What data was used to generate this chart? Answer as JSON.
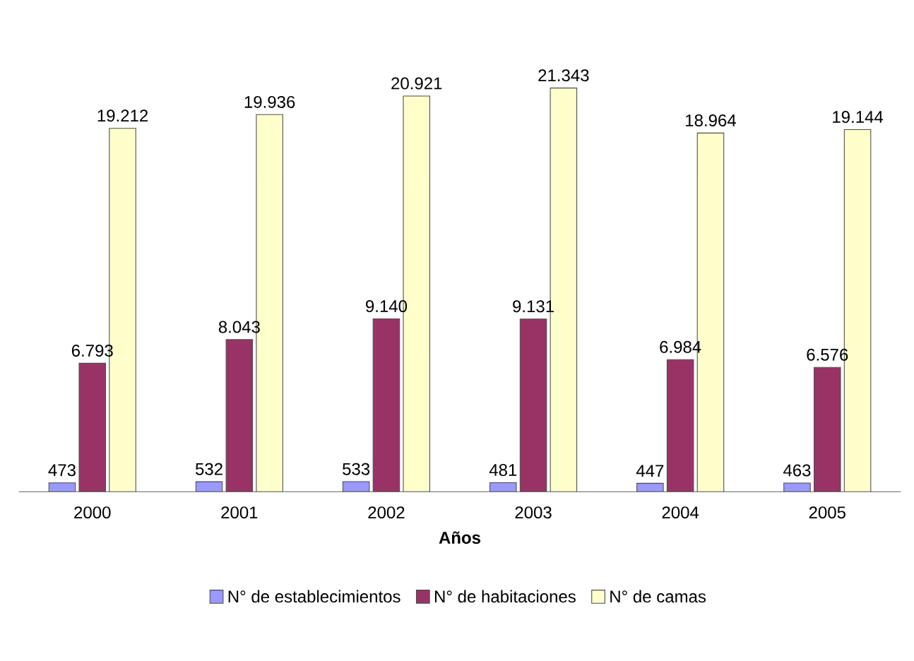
{
  "chart_data": {
    "type": "bar",
    "xlabel": "Años",
    "categories": [
      "2000",
      "2001",
      "2002",
      "2003",
      "2004",
      "2005"
    ],
    "legend": "bottom",
    "series": [
      {
        "name": "N° de establecimientos",
        "color": "#9999ff",
        "values": [
          473,
          532,
          533,
          481,
          447,
          463
        ],
        "value_labels": [
          "473",
          "532",
          "533",
          "481",
          "447",
          "463"
        ]
      },
      {
        "name": "N° de habitaciones",
        "color": "#993366",
        "values": [
          6793,
          8043,
          9140,
          9131,
          6984,
          6576
        ],
        "value_labels": [
          "6.793",
          "8.043",
          "9.140",
          "9.131",
          "6.984",
          "6.576"
        ]
      },
      {
        "name": "N° de camas",
        "color": "#ffffcc",
        "values": [
          19212,
          19936,
          20921,
          21343,
          18964,
          19144
        ],
        "value_labels": [
          "19.212",
          "19.936",
          "20.921",
          "21.343",
          "18.964",
          "19.144"
        ]
      }
    ]
  }
}
